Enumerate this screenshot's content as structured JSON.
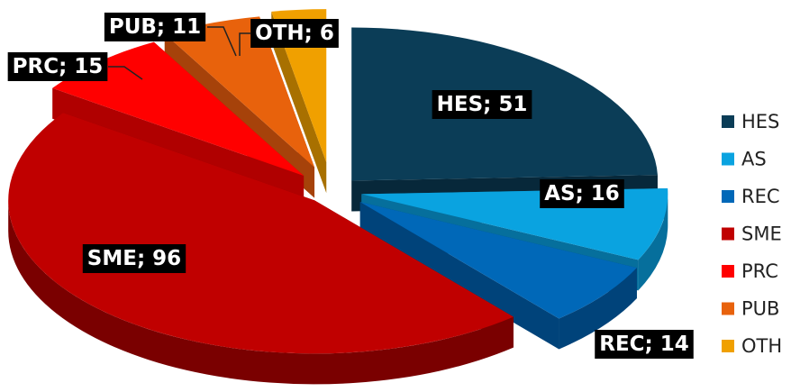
{
  "chart_data": {
    "type": "pie",
    "style": "3d-exploded",
    "legend_position": "right",
    "categories": [
      "HES",
      "AS",
      "REC",
      "SME",
      "PRC",
      "PUB",
      "OTH"
    ],
    "values": [
      51,
      16,
      14,
      96,
      15,
      11,
      6
    ],
    "data_labels": [
      "HES; 51",
      "AS; 16",
      "REC; 14",
      "SME; 96",
      "PRC; 15",
      "PUB; 11",
      "OTH; 6"
    ],
    "colors": [
      "#0b3d57",
      "#0aa3e0",
      "#0068b8",
      "#c00000",
      "#ff0000",
      "#e8620c",
      "#f0a000"
    ],
    "side_colors": [
      "#07283a",
      "#066f9c",
      "#00437a",
      "#7a0000",
      "#b00000",
      "#a6420a",
      "#a87000"
    ]
  }
}
